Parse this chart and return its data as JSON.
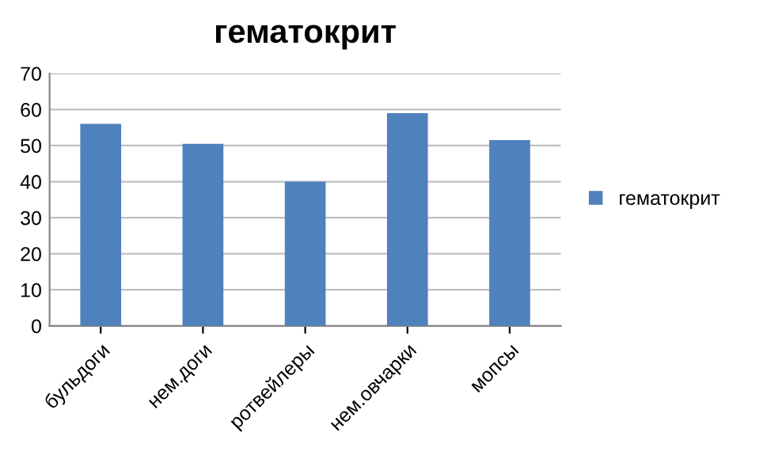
{
  "chart_data": {
    "type": "bar",
    "title": "гематокрит",
    "categories": [
      "бульдоги",
      "нем.доги",
      "ротвейлеры",
      "нем.овчарки",
      "мопсы"
    ],
    "series": [
      {
        "name": "гематокрит",
        "color": "#4f81bd",
        "values": [
          56,
          50.5,
          40,
          59,
          51.5
        ]
      }
    ],
    "ylim": [
      0,
      70
    ],
    "yticks": [
      0,
      10,
      20,
      30,
      40,
      50,
      60,
      70
    ],
    "grid": "y",
    "legend": "right"
  }
}
